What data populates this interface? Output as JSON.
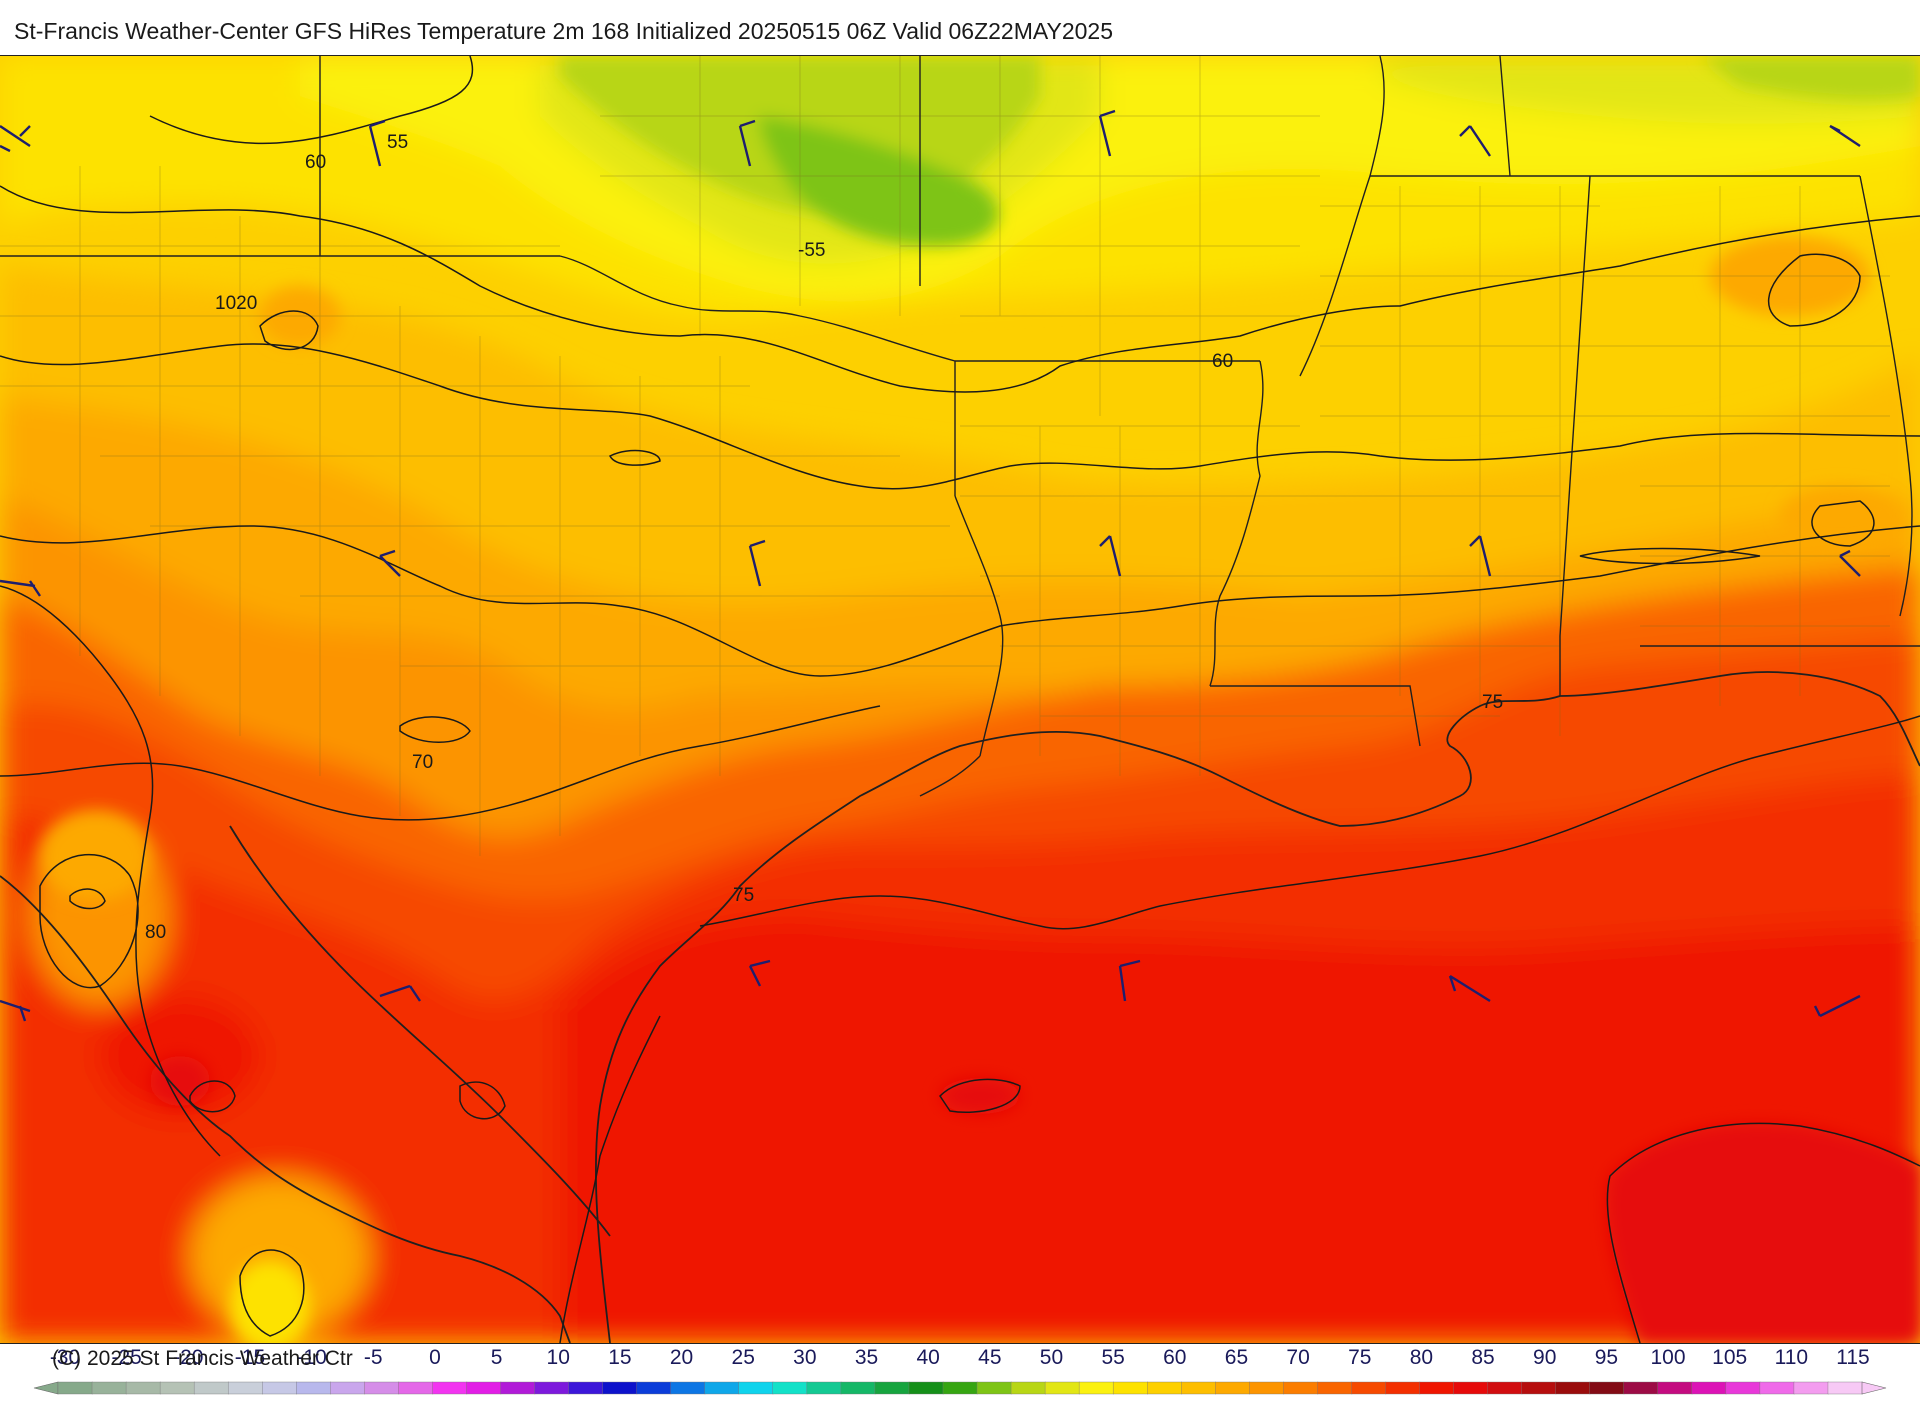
{
  "title": "St-Francis Weather-Center GFS HiRes Temperature 2m  168 Initialized 20250515 06Z Valid 06Z22MAY2025",
  "copyright": "(C) 2025 St Francis Weather Ctr",
  "contour_labels": [
    {
      "id": "label-55-north",
      "text": "55"
    },
    {
      "id": "label-60-west",
      "text": "60"
    },
    {
      "id": "label-55-central",
      "text": "-55"
    },
    {
      "id": "label-1020",
      "text": "1020"
    },
    {
      "id": "label-60-central",
      "text": "60"
    },
    {
      "id": "label-70",
      "text": "70"
    },
    {
      "id": "label-80",
      "text": "80"
    },
    {
      "id": "label-75-coast",
      "text": "75"
    },
    {
      "id": "label-75-east",
      "text": "75"
    }
  ],
  "colorbar": {
    "ticks": [
      "-30",
      "-25",
      "-20",
      "-15",
      "-10",
      "-5",
      "0",
      "5",
      "10",
      "15",
      "20",
      "25",
      "30",
      "35",
      "40",
      "45",
      "50",
      "55",
      "60",
      "65",
      "70",
      "75",
      "80",
      "85",
      "90",
      "95",
      "100",
      "105",
      "110",
      "115"
    ],
    "colors": [
      "#86a98a",
      "#98b29a",
      "#a7b9a7",
      "#b5c2b5",
      "#c0c9c9",
      "#c9cfda",
      "#c6c8e6",
      "#b8b8ec",
      "#c9a6ec",
      "#d58de8",
      "#e468e8",
      "#f234f0",
      "#e21ee6",
      "#b11bd8",
      "#7d1adc",
      "#3c17d9",
      "#0d12cb",
      "#0b3dd9",
      "#0d76e4",
      "#0fa7e9",
      "#10d3ec",
      "#13e1c8",
      "#14c993",
      "#15b767",
      "#17a43f",
      "#158f19",
      "#36a512",
      "#7ec416",
      "#b8d615",
      "#e2e615",
      "#fbf111",
      "#fde200",
      "#fdd000",
      "#fdbe00",
      "#fda900",
      "#fc9400",
      "#fb7d00",
      "#f96500",
      "#f64a00",
      "#f32f00",
      "#ef1500",
      "#e60a0a",
      "#d10d10",
      "#b60e0e",
      "#9a0c0c",
      "#830b15",
      "#9c0b45",
      "#c40b80",
      "#dc13b6",
      "#e838d9",
      "#ef6ae9",
      "#f39cef",
      "#f7c9f5"
    ]
  },
  "colors": {
    "contour": "#1a1a1a",
    "wind_barb": "#1e1e6e",
    "border": "#202020"
  }
}
